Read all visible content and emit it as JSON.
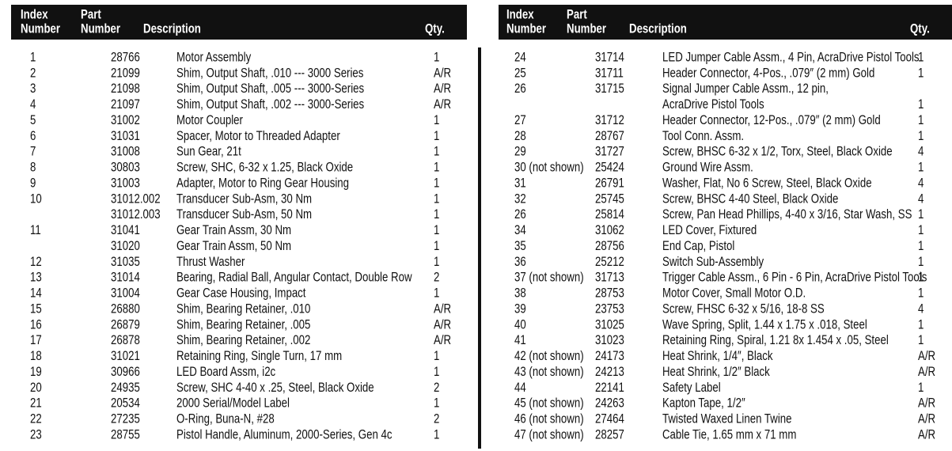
{
  "panels": [
    {
      "header": {
        "index": [
          "Index",
          "Number"
        ],
        "part": [
          "Part",
          "Number"
        ],
        "description": "Description",
        "qty": "Qty."
      },
      "rows": [
        [
          "1",
          "28766",
          "Motor Assembly",
          "1"
        ],
        [
          "2",
          "21099",
          "Shim, Output Shaft, .010 --- 3000 Series",
          "A/R"
        ],
        [
          "3",
          "21098",
          "Shim, Output Shaft, .005 --- 3000-Series",
          "A/R"
        ],
        [
          "4",
          "21097",
          "Shim, Output Shaft, .002 --- 3000-Series",
          "A/R"
        ],
        [
          "5",
          "31002",
          "Motor Coupler",
          "1"
        ],
        [
          "6",
          "31031",
          "Spacer, Motor to Threaded Adapter",
          "1"
        ],
        [
          "7",
          "31008",
          "Sun Gear, 21t",
          "1"
        ],
        [
          "8",
          "30803",
          "Screw, SHC, 6-32 x 1.25, Black Oxide",
          "1"
        ],
        [
          "9",
          "31003",
          "Adapter, Motor to Ring Gear Housing",
          "1"
        ],
        [
          "10",
          "31012.002",
          "Transducer Sub-Asm, 30 Nm",
          "1"
        ],
        [
          null,
          "31012.003",
          "Transducer Sub-Asm, 50 Nm",
          "1"
        ],
        [
          "11",
          "31041",
          "Gear Train Assm, 30 Nm",
          "1"
        ],
        [
          null,
          "31020",
          "Gear Train Assm, 50 Nm",
          "1"
        ],
        [
          "12",
          "31035",
          "Thrust Washer",
          "1"
        ],
        [
          "13",
          "31014",
          "Bearing, Radial Ball, Angular Contact, Double Row",
          "2"
        ],
        [
          "14",
          "31004",
          "Gear Case Housing, Impact",
          "1"
        ],
        [
          "15",
          "26880",
          "Shim, Bearing Retainer, .010",
          "A/R"
        ],
        [
          "16",
          "26879",
          "Shim, Bearing Retainer, .005",
          "A/R"
        ],
        [
          "17",
          "26878",
          "Shim, Bearing Retainer, .002",
          "A/R"
        ],
        [
          "18",
          "31021",
          "Retaining Ring, Single Turn, 17 mm",
          "1"
        ],
        [
          "19",
          "30966",
          "LED Board Assm, i2c",
          "1"
        ],
        [
          "20",
          "24935",
          "Screw, SHC 4-40 x .25, Steel, Black Oxide",
          "2"
        ],
        [
          "21",
          "20534",
          "2000 Serial/Model Label",
          "1"
        ],
        [
          "22",
          "27235",
          "O-Ring, Buna-N, #28",
          "2"
        ],
        [
          "23",
          "28755",
          "Pistol Handle, Aluminum, 2000-Series, Gen 4c",
          "1"
        ]
      ]
    },
    {
      "header": {
        "index": [
          "Index",
          "Number"
        ],
        "part": [
          "Part",
          "Number"
        ],
        "description": "Description",
        "qty": "Qty."
      },
      "rows": [
        [
          "24",
          "31714",
          "LED Jumper Cable Assm., 4 Pin, AcraDrive Pistol Tools",
          "1"
        ],
        [
          "25",
          "31711",
          "Header Connector, 4-Pos., .079″ (2 mm) Gold",
          "1"
        ],
        [
          "26",
          "31715",
          [
            "Signal Jumper Cable Assm., 12 pin,",
            "AcraDrive Pistol Tools"
          ],
          "1"
        ],
        [
          "27",
          "31712",
          "Header Connector, 12-Pos., .079″ (2 mm) Gold",
          "1"
        ],
        [
          "28",
          "28767",
          "Tool Conn. Assm.",
          "1"
        ],
        [
          "29",
          "31727",
          "Screw, BHSC 6-32 x 1/2, Torx, Steel, Black Oxide",
          "4"
        ],
        [
          "30 (not shown)",
          "25424",
          "Ground Wire Assm.",
          "1"
        ],
        [
          "31",
          "26791",
          "Washer, Flat, No 6 Screw, Steel, Black Oxide",
          "4"
        ],
        [
          "32",
          "25745",
          "Screw, BHSC 4-40 Steel, Black Oxide",
          "4"
        ],
        [
          "26",
          "25814",
          "Screw, Pan Head Phillips, 4-40 x 3/16, Star Wash, SS",
          "1"
        ],
        [
          "34",
          "31062",
          "LED Cover, Fixtured",
          "1"
        ],
        [
          "35",
          "28756",
          "End Cap, Pistol",
          "1"
        ],
        [
          "36",
          "25212",
          "Switch Sub-Assembly",
          "1"
        ],
        [
          "37 (not shown)",
          "31713",
          "Trigger Cable Assm., 6 Pin - 6 Pin, AcraDrive Pistol Tools",
          "1"
        ],
        [
          "38",
          "28753",
          "Motor Cover, Small Motor O.D.",
          "1"
        ],
        [
          "39",
          "23753",
          "Screw, FHSC 6-32 x 5/16, 18-8 SS",
          "4"
        ],
        [
          "40",
          "31025",
          "Wave Spring, Split, 1.44 x 1.75 x .018, Steel",
          "1"
        ],
        [
          "41",
          "31023",
          "Retaining Ring, Spiral, 1.21 8x 1.454 x .05, Steel",
          "1"
        ],
        [
          "42 (not shown)",
          "24173",
          "Heat Shrink, 1/4″, Black",
          "A/R"
        ],
        [
          "43 (not shown)",
          "24213",
          "Heat Shrink, 1/2″ Black",
          "A/R"
        ],
        [
          "44",
          "22141",
          "Safety Label",
          "1"
        ],
        [
          "45 (not shown)",
          "24263",
          "Kapton Tape, 1/2″",
          "A/R"
        ],
        [
          "46 (not shown)",
          "27464",
          "Twisted Waxed Linen Twine",
          "A/R"
        ],
        [
          "47 (not shown)",
          "28257",
          "Cable Tie, 1.65 mm x 71 mm",
          "A/R"
        ]
      ]
    }
  ]
}
